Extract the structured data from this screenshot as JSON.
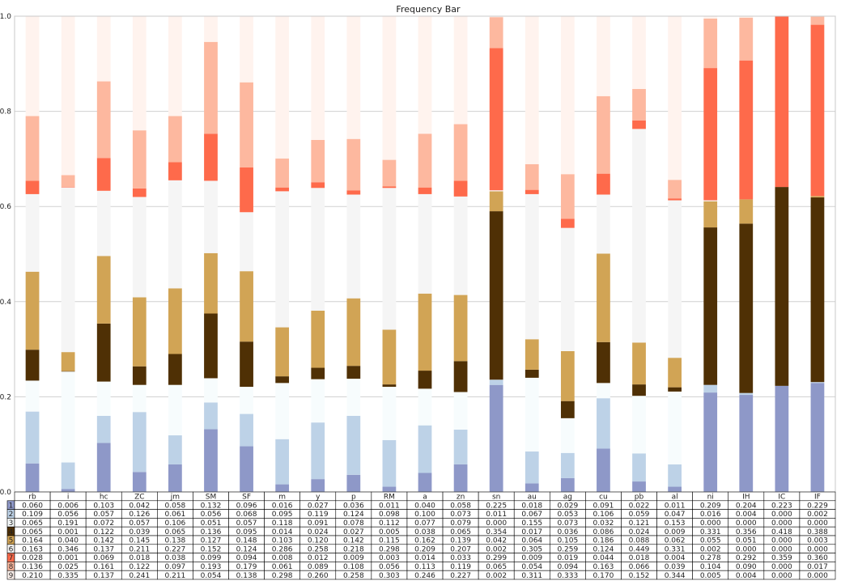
{
  "chart_data": {
    "type": "bar",
    "stacked": true,
    "title": "Frequency Bar",
    "ylim": [
      0,
      1.0
    ],
    "yticks": [
      "0.0",
      "0.2",
      "0.4",
      "0.6",
      "0.8",
      "1.0"
    ],
    "grid": true,
    "categories": [
      "rb",
      "i",
      "hc",
      "ZC",
      "jm",
      "SM",
      "SF",
      "m",
      "y",
      "p",
      "RM",
      "a",
      "zn",
      "sn",
      "au",
      "ag",
      "cu",
      "pb",
      "al",
      "ni",
      "IH",
      "IC",
      "IF"
    ],
    "series": [
      {
        "name": "1",
        "color": "#8e98c8",
        "values": [
          0.06,
          0.006,
          0.103,
          0.042,
          0.058,
          0.132,
          0.096,
          0.016,
          0.027,
          0.036,
          0.011,
          0.04,
          0.058,
          0.225,
          0.018,
          0.029,
          0.091,
          0.022,
          0.011,
          0.209,
          0.204,
          0.223,
          0.229
        ]
      },
      {
        "name": "2",
        "color": "#bdd2e7",
        "values": [
          0.109,
          0.056,
          0.057,
          0.126,
          0.061,
          0.056,
          0.068,
          0.095,
          0.119,
          0.124,
          0.098,
          0.1,
          0.073,
          0.011,
          0.067,
          0.053,
          0.106,
          0.059,
          0.047,
          0.016,
          0.004,
          0.0,
          0.002
        ]
      },
      {
        "name": "3",
        "color": "#f7fcfd",
        "values": [
          0.065,
          0.191,
          0.072,
          0.057,
          0.106,
          0.051,
          0.057,
          0.118,
          0.091,
          0.078,
          0.112,
          0.077,
          0.079,
          0.0,
          0.155,
          0.073,
          0.032,
          0.121,
          0.153,
          0.0,
          0.0,
          0.0,
          0.0
        ]
      },
      {
        "name": "4",
        "color": "#4f3005",
        "values": [
          0.065,
          0.001,
          0.122,
          0.039,
          0.065,
          0.136,
          0.095,
          0.014,
          0.024,
          0.027,
          0.005,
          0.038,
          0.065,
          0.354,
          0.017,
          0.036,
          0.086,
          0.024,
          0.009,
          0.331,
          0.356,
          0.418,
          0.388
        ]
      },
      {
        "name": "5",
        "color": "#d1a455",
        "values": [
          0.164,
          0.04,
          0.142,
          0.145,
          0.138,
          0.127,
          0.148,
          0.103,
          0.12,
          0.142,
          0.115,
          0.162,
          0.139,
          0.042,
          0.064,
          0.105,
          0.186,
          0.088,
          0.062,
          0.055,
          0.051,
          0.0,
          0.003
        ]
      },
      {
        "name": "6",
        "color": "#f5f5f5",
        "values": [
          0.163,
          0.346,
          0.137,
          0.211,
          0.227,
          0.152,
          0.124,
          0.286,
          0.258,
          0.218,
          0.298,
          0.209,
          0.207,
          0.002,
          0.305,
          0.259,
          0.124,
          0.449,
          0.331,
          0.002,
          0.0,
          0.0,
          0.0
        ]
      },
      {
        "name": "7",
        "color": "#fe6a4b",
        "values": [
          0.028,
          0.001,
          0.069,
          0.018,
          0.038,
          0.099,
          0.094,
          0.008,
          0.012,
          0.009,
          0.003,
          0.014,
          0.033,
          0.299,
          0.009,
          0.019,
          0.044,
          0.018,
          0.004,
          0.278,
          0.292,
          0.359,
          0.36
        ]
      },
      {
        "name": "8",
        "color": "#fdb89f",
        "values": [
          0.136,
          0.025,
          0.161,
          0.122,
          0.097,
          0.193,
          0.179,
          0.061,
          0.089,
          0.108,
          0.056,
          0.113,
          0.119,
          0.065,
          0.054,
          0.094,
          0.163,
          0.066,
          0.039,
          0.104,
          0.09,
          0.0,
          0.017
        ]
      },
      {
        "name": "9",
        "color": "#fff3ee",
        "values": [
          0.21,
          0.335,
          0.137,
          0.241,
          0.211,
          0.054,
          0.138,
          0.298,
          0.26,
          0.258,
          0.303,
          0.246,
          0.227,
          0.002,
          0.311,
          0.333,
          0.17,
          0.152,
          0.344,
          0.005,
          0.004,
          0.0,
          0.0
        ]
      }
    ]
  }
}
